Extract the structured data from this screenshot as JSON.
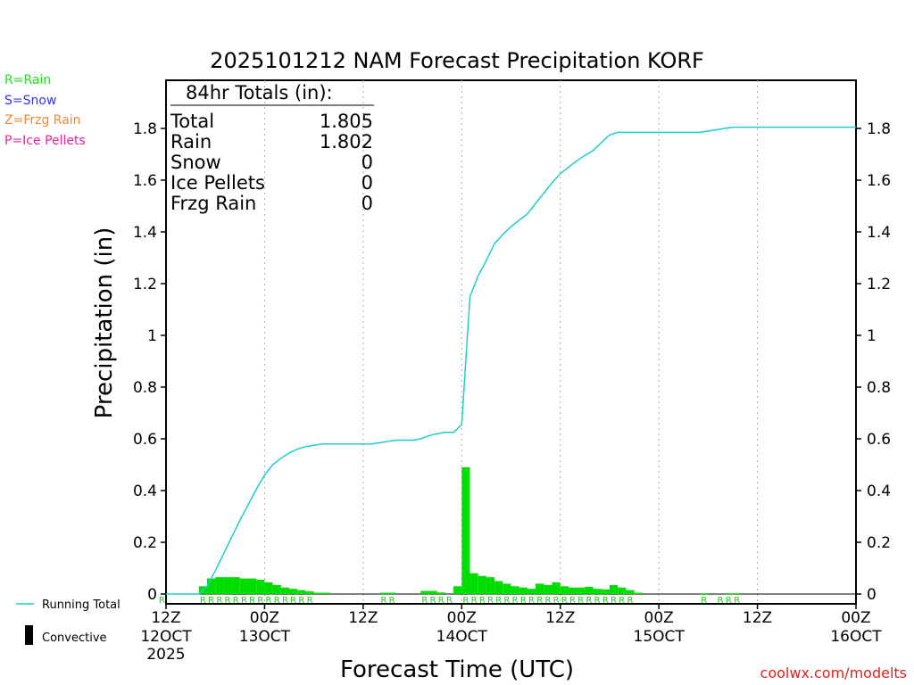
{
  "chart_data": {
    "type": "bar+line",
    "title": "2025101212 NAM Forecast Precipitation KORF",
    "ylabel": "Precipitation (in)",
    "xlabel": "Forecast Time (UTC)",
    "ylim": [
      0,
      1.9
    ],
    "yticks": [
      0,
      0.2,
      0.4,
      0.6,
      0.8,
      1,
      1.2,
      1.4,
      1.6,
      1.8
    ],
    "ytick_labels": [
      "0",
      "0.2",
      "0.4",
      "0.6",
      "0.8",
      "1",
      "1.2",
      "1.4",
      "1.6",
      "1.8"
    ],
    "x_range_hours": [
      0,
      84
    ],
    "x_ticks": [
      {
        "hour": 0,
        "line1": "12Z",
        "line2": "12OCT",
        "line3": "2025"
      },
      {
        "hour": 12,
        "line1": "00Z",
        "line2": "13OCT",
        "line3": ""
      },
      {
        "hour": 24,
        "line1": "12Z",
        "line2": "",
        "line3": ""
      },
      {
        "hour": 36,
        "line1": "00Z",
        "line2": "14OCT",
        "line3": ""
      },
      {
        "hour": 48,
        "line1": "12Z",
        "line2": "",
        "line3": ""
      },
      {
        "hour": 60,
        "line1": "00Z",
        "line2": "15OCT",
        "line3": ""
      },
      {
        "hour": 72,
        "line1": "12Z",
        "line2": "",
        "line3": ""
      },
      {
        "hour": 84,
        "line1": "00Z",
        "line2": "16OCT",
        "line3": ""
      }
    ],
    "bar_series": {
      "name": "Convective",
      "hours": [
        5,
        6,
        7,
        8,
        9,
        10,
        11,
        12,
        13,
        14,
        15,
        16,
        17,
        18,
        19,
        20,
        27,
        28,
        32,
        33,
        34,
        36,
        37,
        38,
        39,
        40,
        41,
        42,
        43,
        44,
        45,
        46,
        47,
        48,
        49,
        50,
        51,
        52,
        53,
        54,
        55,
        56,
        57,
        58,
        66,
        69,
        70
      ],
      "values": [
        0.03,
        0.06,
        0.065,
        0.065,
        0.065,
        0.06,
        0.06,
        0.055,
        0.045,
        0.035,
        0.025,
        0.02,
        0.015,
        0.01,
        0.005,
        0.005,
        0.005,
        0.005,
        0.012,
        0.012,
        0.006,
        0.03,
        0.49,
        0.08,
        0.07,
        0.065,
        0.05,
        0.04,
        0.03,
        0.025,
        0.02,
        0.04,
        0.035,
        0.045,
        0.03,
        0.025,
        0.025,
        0.028,
        0.02,
        0.018,
        0.035,
        0.025,
        0.015,
        0.005,
        0.003,
        0.003,
        0.003
      ]
    },
    "running_total": {
      "name": "Running Total",
      "hours": [
        0,
        1,
        2,
        3,
        4,
        5,
        6,
        7,
        8,
        9,
        10,
        11,
        12,
        13,
        14,
        15,
        16,
        17,
        18,
        19,
        20,
        21,
        22,
        23,
        24,
        25,
        26,
        27,
        28,
        29,
        30,
        31,
        32,
        33,
        34,
        35,
        36,
        37,
        38,
        39,
        40,
        41,
        42,
        43,
        44,
        45,
        46,
        47,
        48,
        49,
        50,
        51,
        52,
        53,
        54,
        55,
        56,
        57,
        58,
        59,
        60,
        61,
        62,
        63,
        64,
        65,
        66,
        67,
        68,
        69,
        70,
        71,
        72,
        84
      ],
      "values": [
        0,
        0,
        0,
        0,
        0,
        0.03,
        0.09,
        0.155,
        0.22,
        0.285,
        0.345,
        0.405,
        0.46,
        0.5,
        0.525,
        0.545,
        0.56,
        0.57,
        0.575,
        0.58,
        0.58,
        0.58,
        0.58,
        0.58,
        0.58,
        0.58,
        0.585,
        0.59,
        0.595,
        0.595,
        0.595,
        0.6,
        0.612,
        0.62,
        0.625,
        0.625,
        0.655,
        1.15,
        1.23,
        1.29,
        1.355,
        1.39,
        1.42,
        1.445,
        1.47,
        1.51,
        1.55,
        1.59,
        1.625,
        1.65,
        1.675,
        1.695,
        1.715,
        1.745,
        1.775,
        1.785,
        1.785,
        1.785,
        1.785,
        1.785,
        1.785,
        1.785,
        1.785,
        1.785,
        1.785,
        1.785,
        1.79,
        1.795,
        1.8,
        1.805,
        1.805,
        1.805,
        1.805,
        1.805
      ]
    },
    "precip_type_markers": [
      {
        "hour": 0,
        "type": "R"
      },
      {
        "hour": 5,
        "type": "R"
      },
      {
        "hour": 6,
        "type": "R"
      },
      {
        "hour": 7,
        "type": "R"
      },
      {
        "hour": 8,
        "type": "R"
      },
      {
        "hour": 9,
        "type": "R"
      },
      {
        "hour": 10,
        "type": "R"
      },
      {
        "hour": 11,
        "type": "R"
      },
      {
        "hour": 12,
        "type": "R"
      },
      {
        "hour": 13,
        "type": "R"
      },
      {
        "hour": 14,
        "type": "R"
      },
      {
        "hour": 15,
        "type": "R"
      },
      {
        "hour": 16,
        "type": "R"
      },
      {
        "hour": 17,
        "type": "R"
      },
      {
        "hour": 18,
        "type": "R"
      },
      {
        "hour": 27,
        "type": "R"
      },
      {
        "hour": 28,
        "type": "R"
      },
      {
        "hour": 32,
        "type": "R"
      },
      {
        "hour": 33,
        "type": "R"
      },
      {
        "hour": 34,
        "type": "R"
      },
      {
        "hour": 35,
        "type": "R"
      },
      {
        "hour": 37,
        "type": "R"
      },
      {
        "hour": 38,
        "type": "R"
      },
      {
        "hour": 39,
        "type": "R"
      },
      {
        "hour": 40,
        "type": "R"
      },
      {
        "hour": 41,
        "type": "R"
      },
      {
        "hour": 42,
        "type": "R"
      },
      {
        "hour": 43,
        "type": "R"
      },
      {
        "hour": 44,
        "type": "R"
      },
      {
        "hour": 45,
        "type": "R"
      },
      {
        "hour": 46,
        "type": "R"
      },
      {
        "hour": 47,
        "type": "R"
      },
      {
        "hour": 48,
        "type": "R"
      },
      {
        "hour": 49,
        "type": "R"
      },
      {
        "hour": 50,
        "type": "R"
      },
      {
        "hour": 51,
        "type": "R"
      },
      {
        "hour": 52,
        "type": "R"
      },
      {
        "hour": 53,
        "type": "R"
      },
      {
        "hour": 54,
        "type": "R"
      },
      {
        "hour": 55,
        "type": "R"
      },
      {
        "hour": 56,
        "type": "R"
      },
      {
        "hour": 57,
        "type": "R"
      },
      {
        "hour": 66,
        "type": "R"
      },
      {
        "hour": 68,
        "type": "R"
      },
      {
        "hour": 69,
        "type": "R"
      },
      {
        "hour": 70,
        "type": "R"
      }
    ],
    "totals_box": {
      "heading": "84hr Totals (in):",
      "rows": [
        {
          "label": "Total",
          "value": "1.805"
        },
        {
          "label": "Rain",
          "value": "1.802"
        },
        {
          "label": "Snow",
          "value": "0"
        },
        {
          "label": "Ice Pellets",
          "value": "0"
        },
        {
          "label": "Frzg Rain",
          "value": "0"
        }
      ]
    },
    "type_legend": [
      {
        "text": "R=Rain",
        "color": "#22dd22"
      },
      {
        "text": "S=Snow",
        "color": "#3333ee"
      },
      {
        "text": "Z=Frzg Rain",
        "color": "#ee8833"
      },
      {
        "text": "P=Ice Pellets",
        "color": "#ee2299"
      }
    ],
    "series_legend": {
      "running_total": "Running Total",
      "convective": "Convective"
    },
    "credit": "coolwx.com/modelts",
    "colors": {
      "bar": "#00dd00",
      "line": "#22cccc",
      "marker": "#22cc22",
      "credit": "#dd2222",
      "axis": "#000000",
      "grid": "#aaaaaa"
    }
  }
}
